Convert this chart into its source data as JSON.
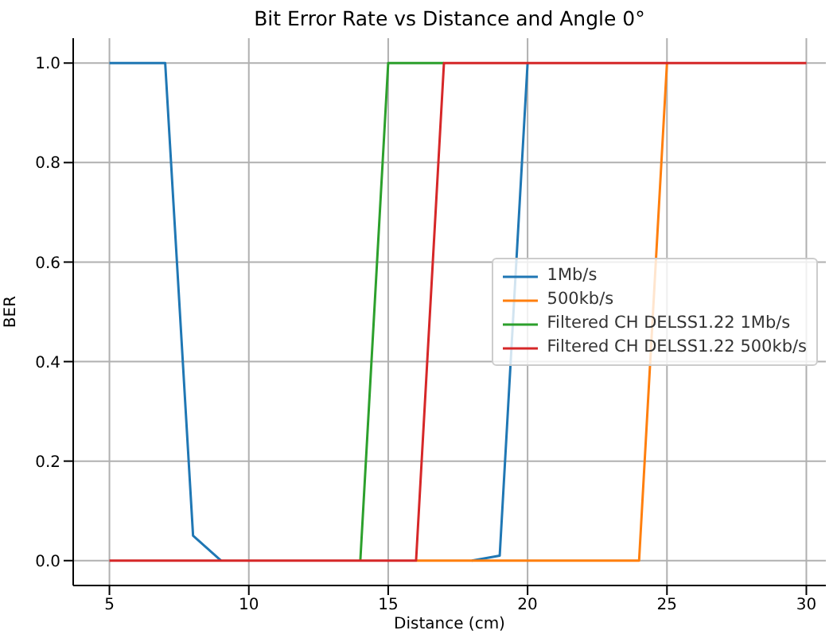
{
  "chart_data": {
    "type": "line",
    "title": "Bit Error Rate vs Distance and Angle 0°",
    "xlabel": "Distance (cm)",
    "ylabel": "BER",
    "x": [
      5,
      6,
      7,
      8,
      9,
      10,
      11,
      12,
      13,
      14,
      15,
      16,
      17,
      18,
      19,
      20,
      21,
      22,
      23,
      24,
      25,
      26,
      27,
      28,
      29,
      30
    ],
    "series": [
      {
        "name": "1Mb/s",
        "color": "#1f77b4",
        "values": [
          1,
          1,
          1,
          0.05,
          0,
          null,
          null,
          null,
          null,
          null,
          null,
          null,
          null,
          0,
          0.01,
          1,
          null,
          null,
          null,
          null,
          null,
          null,
          null,
          null,
          null,
          null
        ]
      },
      {
        "name": "500kb/s",
        "color": "#ff7f0e",
        "values": [
          null,
          null,
          null,
          null,
          null,
          null,
          null,
          null,
          null,
          null,
          null,
          0,
          0,
          0,
          0,
          0,
          0,
          0,
          0,
          0,
          1,
          null,
          null,
          null,
          null,
          null
        ]
      },
      {
        "name": "Filtered CH DELSS1.22 1Mb/s",
        "color": "#2ca02c",
        "values": [
          null,
          null,
          null,
          null,
          null,
          null,
          null,
          null,
          null,
          0,
          1,
          1,
          1,
          null,
          null,
          null,
          null,
          null,
          null,
          null,
          null,
          null,
          null,
          null,
          null,
          null
        ]
      },
      {
        "name": "Filtered CH DELSS1.22 500kb/s",
        "color": "#d62728",
        "values": [
          0,
          0,
          0,
          0,
          0,
          0,
          0,
          0,
          0,
          0,
          0,
          0,
          1,
          1,
          1,
          1,
          1,
          1,
          1,
          1,
          1,
          1,
          1,
          1,
          1,
          1
        ]
      }
    ],
    "xlim": [
      3.7,
      30.7
    ],
    "xticks": [
      5,
      10,
      15,
      20,
      25,
      30
    ],
    "ylim": [
      -0.05,
      1.05
    ],
    "yticks": [
      {
        "value": 0,
        "label": "0.0"
      },
      {
        "value": 0.2,
        "label": "0.2"
      },
      {
        "value": 0.4,
        "label": "0.4"
      },
      {
        "value": 0.6,
        "label": "0.6"
      },
      {
        "value": 0.8,
        "label": "0.8"
      },
      {
        "value": 1,
        "label": "1.0"
      }
    ],
    "grid": true,
    "legend": "center right",
    "marker": "none",
    "line_style": "solid"
  }
}
